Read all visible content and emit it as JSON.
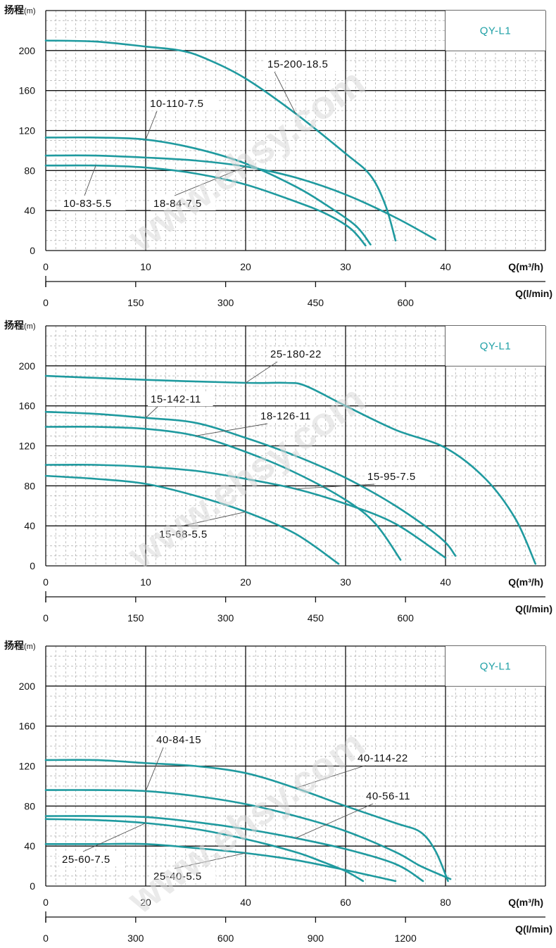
{
  "brand": {
    "curve_color": "#1f9a9f",
    "grid_major_color": "#111111",
    "grid_minor_color": "#9a9a9a",
    "tag_color": "#1fa0a6"
  },
  "watermark": "www.ehsy.com",
  "chart_data": [
    {
      "type": "line",
      "tag": "QY-L1",
      "ylabel": "扬程",
      "ylabel_unit": "(m)",
      "xlabel_m3h": "Q(m³/h)",
      "xlabel_lmin": "Q(l/min)",
      "xlim": [
        0,
        50
      ],
      "ylim": [
        0,
        240
      ],
      "y_ticks": [
        "0",
        "40",
        "80",
        "120",
        "160",
        "200"
      ],
      "x_ticks_m3h": [
        "0",
        "10",
        "20",
        "30",
        "40"
      ],
      "x_ticks_lmin": [
        "0",
        "150",
        "300",
        "450",
        "600"
      ],
      "series": [
        {
          "name": "15-200-18.5",
          "x": [
            0,
            5,
            10,
            13.5,
            16,
            20,
            25,
            30,
            32.5,
            34,
            35
          ],
          "y": [
            210,
            209,
            204,
            200,
            192,
            172,
            137,
            97,
            75,
            45,
            10
          ]
        },
        {
          "name": "10-110-7.5",
          "x": [
            0,
            5,
            10,
            15,
            20,
            25,
            28,
            31,
            32.5
          ],
          "y": [
            113,
            113,
            111,
            102,
            87,
            64,
            46,
            25,
            6
          ]
        },
        {
          "name": "10-83-5.5",
          "x": [
            0,
            5,
            10,
            15,
            20,
            25,
            28,
            30.5,
            32
          ],
          "y": [
            85,
            85,
            83,
            77,
            66,
            49,
            37,
            22,
            5
          ]
        },
        {
          "name": "18-84-7.5",
          "x": [
            0,
            5,
            10,
            15,
            20,
            25,
            30,
            35,
            39
          ],
          "y": [
            95,
            95,
            93,
            90,
            84,
            73,
            56,
            33,
            11
          ]
        }
      ],
      "annotations": [
        {
          "text": "15-200-18.5",
          "series": "15-200-18.5"
        },
        {
          "text": "10-110-7.5",
          "series": "10-110-7.5"
        },
        {
          "text": "10-83-5.5",
          "series": "10-83-5.5"
        },
        {
          "text": "18-84-7.5",
          "series": "18-84-7.5"
        }
      ]
    },
    {
      "type": "line",
      "tag": "QY-L1",
      "ylabel": "扬程",
      "ylabel_unit": "(m)",
      "xlabel_m3h": "Q(m³/h)",
      "xlabel_lmin": "Q(l/min)",
      "xlim": [
        0,
        50
      ],
      "ylim": [
        0,
        240
      ],
      "y_ticks": [
        "0",
        "40",
        "80",
        "120",
        "160",
        "200"
      ],
      "x_ticks_m3h": [
        "0",
        "10",
        "20",
        "30",
        "40"
      ],
      "x_ticks_lmin": [
        "0",
        "150",
        "300",
        "450",
        "600"
      ],
      "series": [
        {
          "name": "25-180-22",
          "x": [
            0,
            10,
            20,
            24,
            26,
            30,
            35,
            40,
            44,
            47,
            49
          ],
          "y": [
            190,
            186,
            183,
            183,
            180,
            160,
            136,
            118,
            87,
            47,
            2
          ]
        },
        {
          "name": "15-142-11",
          "x": [
            0,
            5,
            10,
            15,
            20,
            25,
            30,
            35,
            39.5,
            41
          ],
          "y": [
            154,
            152,
            148,
            143,
            128,
            110,
            88,
            60,
            28,
            10
          ]
        },
        {
          "name": "18-126-11",
          "x": [
            0,
            5,
            10,
            15,
            20,
            25,
            30,
            33,
            35.5
          ],
          "y": [
            139,
            139,
            137,
            130,
            114,
            93,
            66,
            42,
            6
          ]
        },
        {
          "name": "15-95-7.5",
          "x": [
            0,
            5,
            10,
            15,
            20,
            25,
            30,
            35,
            40
          ],
          "y": [
            101,
            101,
            99,
            95,
            87,
            77,
            62,
            42,
            8
          ]
        },
        {
          "name": "15-68-5.5",
          "x": [
            0,
            5,
            10,
            15,
            20,
            25,
            29.3
          ],
          "y": [
            90,
            87,
            82,
            70,
            54,
            32,
            2
          ]
        }
      ],
      "annotations": [
        {
          "text": "25-180-22",
          "series": "25-180-22"
        },
        {
          "text": "15-142-11",
          "series": "15-142-11"
        },
        {
          "text": "18-126-11",
          "series": "18-126-11"
        },
        {
          "text": "15-95-7.5",
          "series": "15-95-7.5"
        },
        {
          "text": "15-68-5.5",
          "series": "15-68-5.5"
        }
      ]
    },
    {
      "type": "line",
      "tag": "QY-L1",
      "ylabel": "扬程",
      "ylabel_unit": "(m)",
      "xlabel_m3h": "Q(m³/h)",
      "xlabel_lmin": "Q(l/min)",
      "xlim": [
        0,
        100
      ],
      "ylim": [
        0,
        240
      ],
      "y_ticks": [
        "0",
        "40",
        "80",
        "120",
        "160",
        "200"
      ],
      "x_ticks_m3h": [
        "0",
        "20",
        "40",
        "60",
        "80"
      ],
      "x_ticks_lmin": [
        "0",
        "300",
        "600",
        "900",
        "1200"
      ],
      "series": [
        {
          "name": "40-114-22",
          "x": [
            0,
            10,
            20,
            30,
            40,
            50,
            60,
            70,
            75,
            78,
            80.5
          ],
          "y": [
            126,
            126,
            123,
            120,
            113,
            98,
            80,
            63,
            54,
            35,
            5
          ]
        },
        {
          "name": "40-84-15",
          "x": [
            0,
            10,
            20,
            30,
            40,
            50,
            60,
            70,
            75,
            81
          ],
          "y": [
            96,
            96,
            95,
            90,
            82,
            70,
            55,
            34,
            20,
            7
          ]
        },
        {
          "name": "40-56-11",
          "x": [
            0,
            10,
            20,
            30,
            40,
            50,
            60,
            70,
            75.5
          ],
          "y": [
            70,
            70,
            69,
            64,
            57,
            48,
            37,
            22,
            5
          ]
        },
        {
          "name": "25-60-7.5",
          "x": [
            0,
            10,
            20,
            30,
            40,
            50,
            55,
            60,
            63.5
          ],
          "y": [
            67,
            66,
            63,
            57,
            47,
            34,
            25,
            15,
            5
          ]
        },
        {
          "name": "25-40-5.5",
          "x": [
            0,
            10,
            20,
            30,
            40,
            50,
            60,
            70
          ],
          "y": [
            42,
            42,
            42,
            38,
            33,
            26,
            16,
            5
          ]
        }
      ],
      "annotations": [
        {
          "text": "40-84-15",
          "series": "40-84-15"
        },
        {
          "text": "40-114-22",
          "series": "40-114-22"
        },
        {
          "text": "40-56-11",
          "series": "40-56-11"
        },
        {
          "text": "25-60-7.5",
          "series": "25-60-7.5"
        },
        {
          "text": "25-40-5.5",
          "series": "25-40-5.5"
        }
      ]
    }
  ]
}
